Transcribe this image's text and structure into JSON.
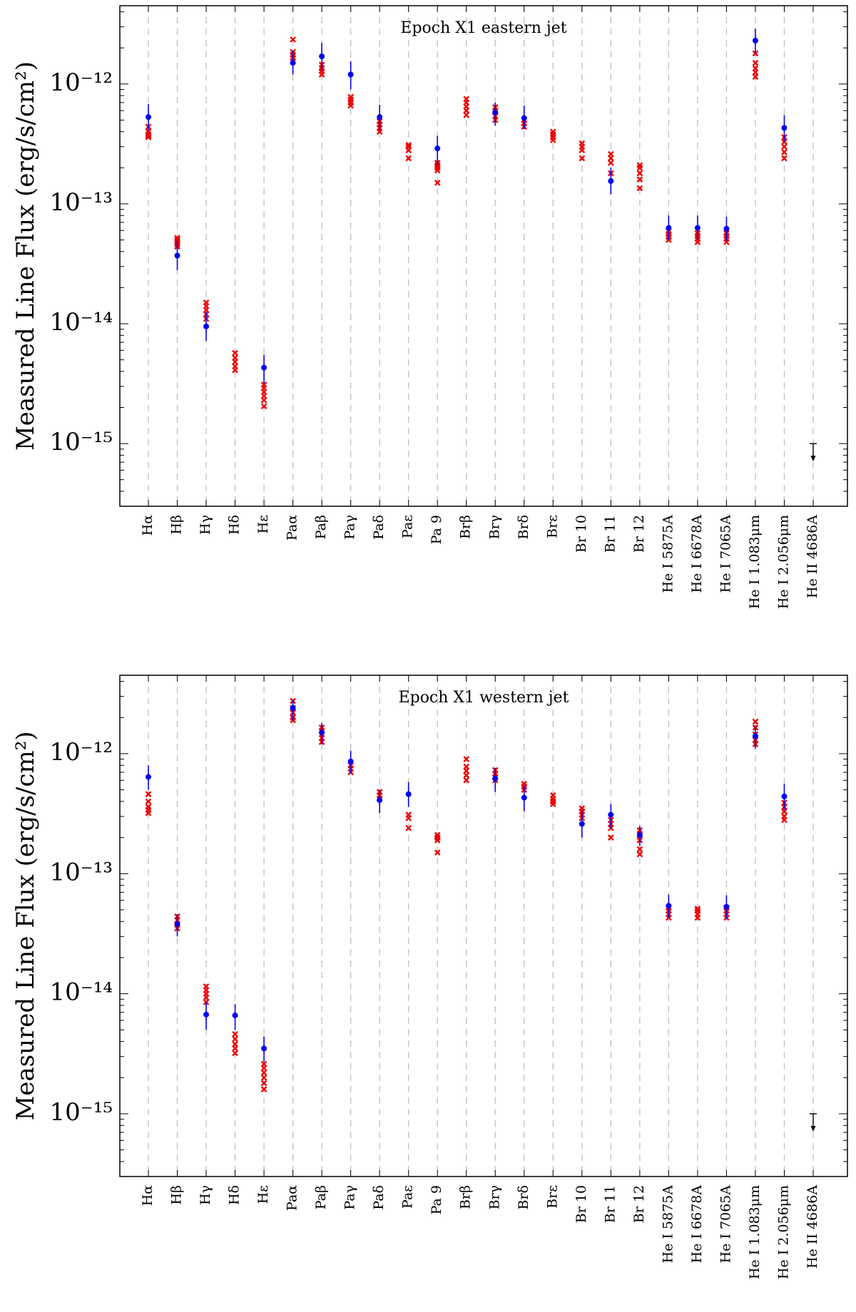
{
  "figure": {
    "ylabel": "Measured Line Flux (erg/s/cm²)"
  },
  "chart_data": [
    {
      "type": "scatter",
      "title": "Epoch X1 eastern jet",
      "ylabel": "Measured Line Flux (erg/s/cm²)",
      "yscale": "log",
      "ylim": [
        3e-16,
        4.5e-12
      ],
      "y_ticks": [
        "10⁻¹⁵",
        "10⁻¹⁴",
        "10⁻¹³",
        "10⁻¹²"
      ],
      "categories": [
        "Hα",
        "Hβ",
        "Hγ",
        "Hδ",
        "Hε",
        "Paα",
        "Paβ",
        "Paγ",
        "Paδ",
        "Paε",
        "Pa 9",
        "Brβ",
        "Brγ",
        "Brδ",
        "Brε",
        "Br 10",
        "Br 11",
        "Br 12",
        "He I 5875A",
        "He I 6678A",
        "He I 7065A",
        "He I 1.083μm",
        "He I 2.056μm",
        "He II 4686A"
      ],
      "observed": [
        {
          "category": "Hα",
          "value": 5.3e-13,
          "err_low": 4.1e-13,
          "err_high": 6.8e-13
        },
        {
          "category": "Hβ",
          "value": 3.7e-14,
          "err_low": 2.8e-14,
          "err_high": 4.9e-14
        },
        {
          "category": "Hγ",
          "value": 9.5e-15,
          "err_low": 7.2e-15,
          "err_high": 1.25e-14
        },
        {
          "category": "Hε",
          "value": 4.3e-15,
          "err_low": 3.2e-15,
          "err_high": 5.5e-15
        },
        {
          "category": "Paα",
          "value": 1.5e-12,
          "err_low": 1.2e-12,
          "err_high": 1.9e-12
        },
        {
          "category": "Paβ",
          "value": 1.7e-12,
          "err_low": 1.3e-12,
          "err_high": 2.2e-12
        },
        {
          "category": "Paγ",
          "value": 1.2e-12,
          "err_low": 9e-13,
          "err_high": 1.55e-12
        },
        {
          "category": "Paδ",
          "value": 5.3e-13,
          "err_low": 4.1e-13,
          "err_high": 6.7e-13
        },
        {
          "category": "Pa 9",
          "value": 2.9e-13,
          "err_low": 2.1e-13,
          "err_high": 3.7e-13
        },
        {
          "category": "Brγ",
          "value": 5.8e-13,
          "err_low": 4.5e-13,
          "err_high": 7e-13
        },
        {
          "category": "Brδ",
          "value": 5.2e-13,
          "err_low": 4.2e-13,
          "err_high": 6.6e-13
        },
        {
          "category": "Br 11",
          "value": 1.55e-13,
          "err_low": 1.2e-13,
          "err_high": 2e-13
        },
        {
          "category": "He I 5875A",
          "value": 6.3e-14,
          "err_low": 5e-14,
          "err_high": 8e-14
        },
        {
          "category": "He I 6678A",
          "value": 6.3e-14,
          "err_low": 5e-14,
          "err_high": 8e-14
        },
        {
          "category": "He I 7065A",
          "value": 6.2e-14,
          "err_low": 4.9e-14,
          "err_high": 7.8e-14
        },
        {
          "category": "He I 1.083μm",
          "value": 2.3e-12,
          "err_low": 1.8e-12,
          "err_high": 2.9e-12
        },
        {
          "category": "He I 2.056μm",
          "value": 4.3e-13,
          "err_low": 3.3e-13,
          "err_high": 5.5e-13
        }
      ],
      "models": [
        {
          "category": "Hα",
          "values": [
            3.6e-13,
            3.7e-13,
            3.8e-13,
            4e-13,
            4.4e-13
          ]
        },
        {
          "category": "Hβ",
          "values": [
            4.4e-14,
            4.6e-14,
            4.8e-14,
            5e-14,
            5.2e-14
          ]
        },
        {
          "category": "Hγ",
          "values": [
            1.1e-14,
            1.2e-14,
            1.3e-14,
            1.4e-14,
            1.5e-14
          ]
        },
        {
          "category": "Hδ",
          "values": [
            4.1e-15,
            4.4e-15,
            4.8e-15,
            5.2e-15,
            5.7e-15
          ]
        },
        {
          "category": "Hε",
          "values": [
            2.05e-15,
            2.3e-15,
            2.5e-15,
            2.7e-15,
            2.9e-15,
            3.1e-15
          ]
        },
        {
          "category": "Paα",
          "values": [
            1.55e-12,
            1.65e-12,
            1.75e-12,
            1.85e-12,
            2.35e-12
          ]
        },
        {
          "category": "Paβ",
          "values": [
            1.2e-12,
            1.28e-12,
            1.35e-12,
            1.45e-12
          ]
        },
        {
          "category": "Paγ",
          "values": [
            6.6e-13,
            7e-13,
            7.4e-13,
            7.8e-13
          ]
        },
        {
          "category": "Paδ",
          "values": [
            4e-13,
            4.3e-13,
            4.6e-13,
            4.9e-13
          ]
        },
        {
          "category": "Paε",
          "values": [
            2.4e-13,
            2.8e-13,
            3e-13,
            3.1e-13
          ]
        },
        {
          "category": "Pa 9",
          "values": [
            1.5e-13,
            1.9e-13,
            2e-13,
            2.1e-13,
            2.2e-13
          ]
        },
        {
          "category": "Brβ",
          "values": [
            5.5e-13,
            6e-13,
            6.5e-13,
            7e-13,
            7.5e-13
          ]
        },
        {
          "category": "Brγ",
          "values": [
            5e-13,
            5.4e-13,
            5.9e-13,
            6.4e-13
          ]
        },
        {
          "category": "Brδ",
          "values": [
            4.4e-13,
            4.7e-13,
            5e-13
          ]
        },
        {
          "category": "Brε",
          "values": [
            3.4e-13,
            3.6e-13,
            3.8e-13,
            4e-13
          ]
        },
        {
          "category": "Br 10",
          "values": [
            2.4e-13,
            2.8e-13,
            3e-13,
            3.2e-13
          ]
        },
        {
          "category": "Br 11",
          "values": [
            1.8e-13,
            2.2e-13,
            2.4e-13,
            2.6e-13
          ]
        },
        {
          "category": "Br 12",
          "values": [
            1.35e-13,
            1.6e-13,
            1.8e-13,
            2e-13,
            2.1e-13
          ]
        },
        {
          "category": "He I 5875A",
          "values": [
            5e-14,
            5.3e-14,
            5.6e-14,
            5.9e-14
          ]
        },
        {
          "category": "He I 6678A",
          "values": [
            4.8e-14,
            5.1e-14,
            5.4e-14,
            5.7e-14
          ]
        },
        {
          "category": "He I 7065A",
          "values": [
            4.8e-14,
            5.1e-14,
            5.4e-14,
            5.7e-14
          ]
        },
        {
          "category": "He I 1.083μm",
          "values": [
            1.15e-12,
            1.25e-12,
            1.35e-12,
            1.5e-12,
            1.8e-12
          ]
        },
        {
          "category": "He I 2.056μm",
          "values": [
            2.4e-13,
            2.7e-13,
            3e-13,
            3.3e-13,
            3.6e-13
          ]
        }
      ],
      "upper_limits": [
        {
          "category": "He II 4686A",
          "value": 1e-15
        }
      ]
    },
    {
      "type": "scatter",
      "title": "Epoch X1 western jet",
      "ylabel": "Measured Line Flux (erg/s/cm²)",
      "yscale": "log",
      "ylim": [
        3e-16,
        4.5e-12
      ],
      "y_ticks": [
        "10⁻¹⁵",
        "10⁻¹⁴",
        "10⁻¹³",
        "10⁻¹²"
      ],
      "categories": [
        "Hα",
        "Hβ",
        "Hγ",
        "Hδ",
        "Hε",
        "Paα",
        "Paβ",
        "Paγ",
        "Paδ",
        "Paε",
        "Pa 9",
        "Brβ",
        "Brγ",
        "Brδ",
        "Brε",
        "Br 10",
        "Br 11",
        "Br 12",
        "He I 5875A",
        "He I 6678A",
        "He I 7065A",
        "He I 1.083μm",
        "He I 2.056μm",
        "He II 4686A"
      ],
      "observed": [
        {
          "category": "Hα",
          "value": 6.4e-13,
          "err_low": 5e-13,
          "err_high": 8e-13
        },
        {
          "category": "Hβ",
          "value": 3.8e-14,
          "err_low": 3e-14,
          "err_high": 4.6e-14
        },
        {
          "category": "Hγ",
          "value": 6.7e-15,
          "err_low": 5e-15,
          "err_high": 8.5e-15
        },
        {
          "category": "Hδ",
          "value": 6.6e-15,
          "err_low": 5e-15,
          "err_high": 8.2e-15
        },
        {
          "category": "Hε",
          "value": 3.5e-15,
          "err_low": 2.7e-15,
          "err_high": 4.4e-15
        },
        {
          "category": "Paα",
          "value": 2.4e-12,
          "err_low": 1.9e-12,
          "err_high": 2.8e-12
        },
        {
          "category": "Paβ",
          "value": 1.5e-12,
          "err_low": 1.2e-12,
          "err_high": 1.8e-12
        },
        {
          "category": "Paγ",
          "value": 8.6e-13,
          "err_low": 6.8e-13,
          "err_high": 1.06e-12
        },
        {
          "category": "Paδ",
          "value": 4.1e-13,
          "err_low": 3.2e-13,
          "err_high": 5e-13
        },
        {
          "category": "Paε",
          "value": 4.6e-13,
          "err_low": 3.6e-13,
          "err_high": 5.8e-13
        },
        {
          "category": "Brγ",
          "value": 6.2e-13,
          "err_low": 4.8e-13,
          "err_high": 7.6e-13
        },
        {
          "category": "Brδ",
          "value": 4.3e-13,
          "err_low": 3.3e-13,
          "err_high": 5.4e-13
        },
        {
          "category": "Br 10",
          "value": 2.6e-13,
          "err_low": 2e-13,
          "err_high": 3.3e-13
        },
        {
          "category": "Br 11",
          "value": 3.1e-13,
          "err_low": 2.4e-13,
          "err_high": 3.8e-13
        },
        {
          "category": "Br 12",
          "value": 2.1e-13,
          "err_low": 1.7e-13,
          "err_high": 2.5e-13
        },
        {
          "category": "He I 5875A",
          "value": 5.4e-14,
          "err_low": 4.3e-14,
          "err_high": 6.7e-14
        },
        {
          "category": "He I 7065A",
          "value": 5.3e-14,
          "err_low": 4.2e-14,
          "err_high": 6.6e-14
        },
        {
          "category": "He I 1.083μm",
          "value": 1.4e-12,
          "err_low": 1.1e-12,
          "err_high": 1.7e-12
        },
        {
          "category": "He I 2.056μm",
          "value": 4.4e-13,
          "err_low": 3.4e-13,
          "err_high": 5.6e-13
        }
      ],
      "models": [
        {
          "category": "Hα",
          "values": [
            3.2e-13,
            3.4e-13,
            3.6e-13,
            4e-13,
            4.6e-13
          ]
        },
        {
          "category": "Hβ",
          "values": [
            3.5e-14,
            3.8e-14,
            4.1e-14,
            4.4e-14
          ]
        },
        {
          "category": "Hγ",
          "values": [
            8.5e-15,
            9.3e-15,
            1e-14,
            1.07e-14,
            1.15e-14
          ]
        },
        {
          "category": "Hδ",
          "values": [
            3.2e-15,
            3.5e-15,
            3.8e-15,
            4.2e-15,
            4.6e-15
          ]
        },
        {
          "category": "Hε",
          "values": [
            1.6e-15,
            1.8e-15,
            2e-15,
            2.2e-15,
            2.4e-15,
            2.6e-15
          ]
        },
        {
          "category": "Paα",
          "values": [
            1.9e-12,
            2e-12,
            2.2e-12,
            2.4e-12,
            2.75e-12
          ]
        },
        {
          "category": "Paβ",
          "values": [
            1.25e-12,
            1.35e-12,
            1.45e-12,
            1.55e-12,
            1.65e-12
          ]
        },
        {
          "category": "Paγ",
          "values": [
            7e-13,
            7.5e-13,
            8e-13
          ]
        },
        {
          "category": "Paδ",
          "values": [
            4.2e-13,
            4.5e-13,
            4.8e-13
          ]
        },
        {
          "category": "Paε",
          "values": [
            2.4e-13,
            2.9e-13,
            3.1e-13
          ]
        },
        {
          "category": "Pa 9",
          "values": [
            1.5e-13,
            1.9e-13,
            2e-13,
            2.1e-13
          ]
        },
        {
          "category": "Brβ",
          "values": [
            6e-13,
            6.6e-13,
            7.2e-13,
            7.8e-13,
            9e-13
          ]
        },
        {
          "category": "Brγ",
          "values": [
            6e-13,
            6.4e-13,
            6.8e-13,
            7.3e-13
          ]
        },
        {
          "category": "Brδ",
          "values": [
            5e-13,
            5.3e-13,
            5.6e-13
          ]
        },
        {
          "category": "Brε",
          "values": [
            3.8e-13,
            4e-13,
            4.2e-13,
            4.5e-13
          ]
        },
        {
          "category": "Br 10",
          "values": [
            2.9e-13,
            3.1e-13,
            3.3e-13,
            3.5e-13
          ]
        },
        {
          "category": "Br 11",
          "values": [
            2e-13,
            2.4e-13,
            2.6e-13,
            2.8e-13
          ]
        },
        {
          "category": "Br 12",
          "values": [
            1.45e-13,
            1.6e-13,
            1.9e-13,
            2.1e-13,
            2.3e-13
          ]
        },
        {
          "category": "He I 5875A",
          "values": [
            4.3e-14,
            4.6e-14,
            4.9e-14,
            5.2e-14
          ]
        },
        {
          "category": "He I 6678A",
          "values": [
            4.3e-14,
            4.6e-14,
            4.9e-14,
            5.1e-14
          ]
        },
        {
          "category": "He I 7065A",
          "values": [
            4.3e-14,
            4.6e-14,
            4.9e-14,
            5.2e-14
          ]
        },
        {
          "category": "He I 1.083μm",
          "values": [
            1.2e-12,
            1.3e-12,
            1.45e-12,
            1.65e-12,
            1.85e-12
          ]
        },
        {
          "category": "He I 2.056μm",
          "values": [
            2.8e-13,
            3e-13,
            3.3e-13,
            3.6e-13,
            3.9e-13
          ]
        }
      ],
      "upper_limits": [
        {
          "category": "He II 4686A",
          "value": 1e-15
        }
      ]
    }
  ],
  "colors": {
    "observed": "#0000ee",
    "model": "#ee0000",
    "grid": "#bbbbbb",
    "axis": "#000000"
  }
}
